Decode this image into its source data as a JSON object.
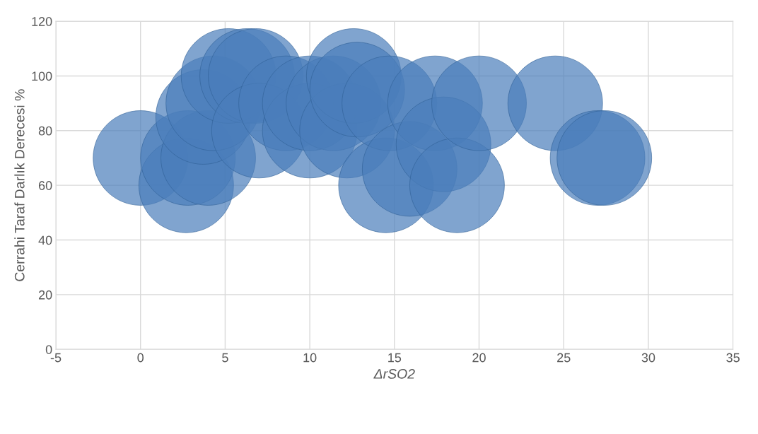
{
  "chart_data": {
    "type": "bubble",
    "xlabel": "ΔrSO2",
    "ylabel": "Cerrahi Taraf Darlık Derecesi %",
    "x": [
      0,
      2.7,
      2.8,
      4.0,
      3.7,
      4.3,
      5.2,
      6.3,
      6.8,
      7,
      8.6,
      10,
      10,
      11.4,
      12.2,
      12.6,
      12.8,
      14.5,
      14.7,
      15.9,
      17.4,
      17.9,
      18.7,
      20,
      24.5,
      27,
      27.4
    ],
    "values": [
      70,
      60,
      70,
      70,
      85,
      90,
      100,
      100,
      100,
      80,
      90,
      80,
      90,
      90,
      80,
      100,
      95,
      60,
      90,
      66,
      90,
      75,
      60,
      90,
      90,
      70,
      70
    ],
    "sizes": [
      1,
      1,
      1,
      1,
      1,
      1,
      1,
      1,
      1,
      1,
      1,
      1,
      1,
      1,
      1,
      1,
      1,
      1,
      1,
      1,
      1,
      1,
      1,
      1,
      1,
      1,
      1
    ],
    "color": "#4a7ebb",
    "xlim": [
      -5,
      35
    ],
    "xticks": [
      -5,
      0,
      5,
      10,
      15,
      20,
      25,
      30,
      35
    ],
    "ylim": [
      0,
      120
    ],
    "yticks": [
      0,
      20,
      40,
      60,
      80,
      100,
      120
    ],
    "grid": true
  }
}
